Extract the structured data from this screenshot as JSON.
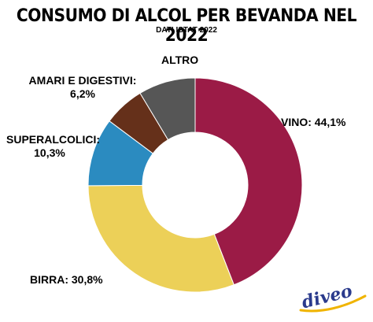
{
  "title": "CONSUMO DI ALCOL PER BEVANDA NEL 2022",
  "subtitle": "DATI ISTAT 2022",
  "logo_text": "diveo",
  "chart_data": {
    "type": "pie",
    "title": "CONSUMO DI ALCOL PER BEVANDA NEL 2022",
    "subtitle": "DATI ISTAT 2022",
    "donut": true,
    "slices": [
      {
        "label": "VINO",
        "value": 44.1,
        "value_text": "44,1%",
        "color": "#9b1b46"
      },
      {
        "label": "BIRRA",
        "value": 30.8,
        "value_text": "30,8%",
        "color": "#ecd058"
      },
      {
        "label": "SUPERALCOLICI",
        "value": 10.3,
        "value_text": "10,3%",
        "color": "#2b8bc0"
      },
      {
        "label": "AMARI E DIGESTIVI",
        "value": 6.2,
        "value_text": "6,2%",
        "color": "#65301a"
      },
      {
        "label": "ALTRO",
        "value": 8.6,
        "value_text": "",
        "color": "#565656"
      }
    ],
    "labels": {
      "vino": "VINO: 44,1%",
      "birra": "BIRRA: 30,8%",
      "superalcolici_name": "SUPERALCOLICI:",
      "superalcolici_value": "10,3%",
      "amari_name": "AMARI E DIGESTIVI:",
      "amari_value": "6,2%",
      "altro": "ALTRO"
    }
  }
}
